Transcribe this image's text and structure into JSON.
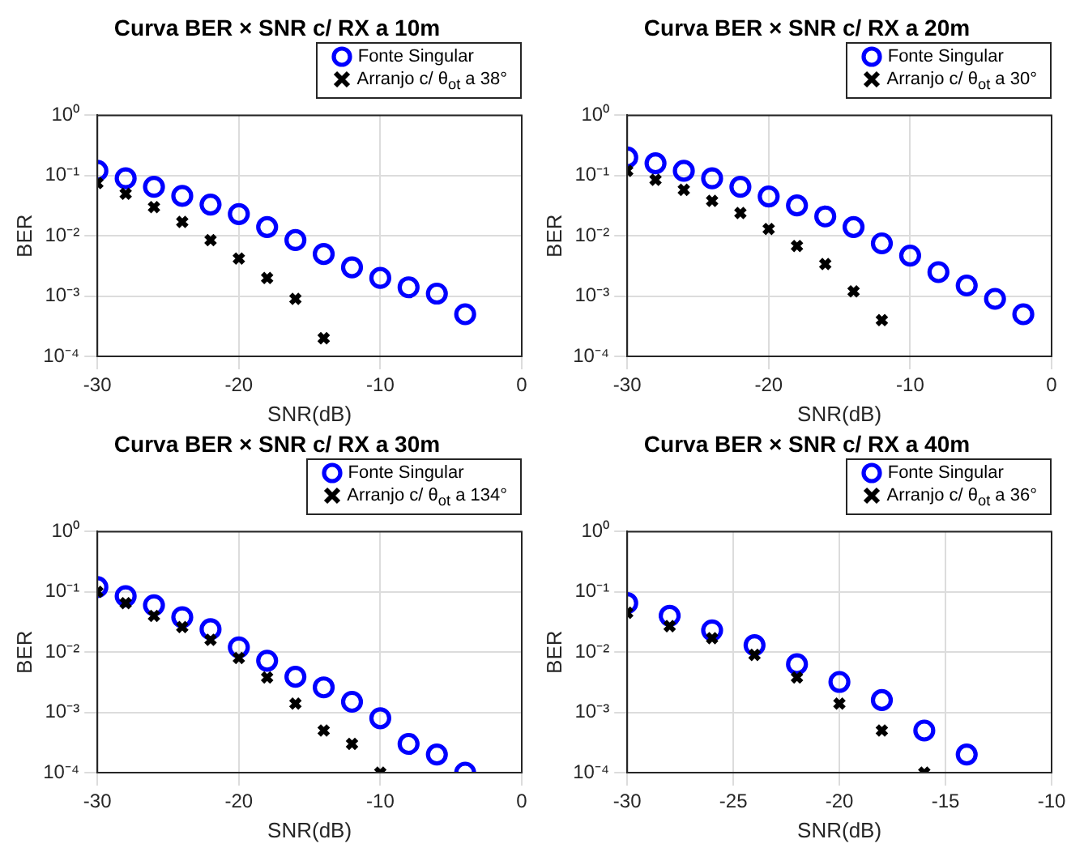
{
  "chart_data": [
    {
      "type": "scatter",
      "title": "Curva BER × SNR c/ RX a 10m",
      "xlabel": "SNR(dB)",
      "ylabel": "BER",
      "log": "y",
      "grid": true,
      "legend": "top right",
      "xlim": [
        -30,
        0
      ],
      "xticks": [
        -30,
        -20,
        -10,
        0
      ],
      "ylim": [
        0.0001,
        1
      ],
      "yticks": [
        {
          "value": 0.0001,
          "label": "10⁻⁴"
        },
        {
          "value": 0.001,
          "label": "10⁻³"
        },
        {
          "value": 0.01,
          "label": "10⁻²"
        },
        {
          "value": 0.1,
          "label": "10⁻¹"
        },
        {
          "value": 1,
          "label": "10⁰"
        }
      ],
      "series": [
        {
          "name": "Fonte Singular",
          "color": "#0000ff",
          "marker": "circle",
          "x": [
            -30,
            -28,
            -26,
            -24,
            -22,
            -20,
            -18,
            -16,
            -14,
            -12,
            -10,
            -8,
            -6,
            -4
          ],
          "values": [
            0.12,
            0.09,
            0.065,
            0.046,
            0.033,
            0.023,
            0.014,
            0.0085,
            0.005,
            0.003,
            0.002,
            0.0014,
            0.0011,
            0.0005
          ]
        },
        {
          "name": "Arranjo c/ θ$_{ot}$ a 38°",
          "color": "#000000",
          "marker": "cross",
          "x": [
            -30,
            -28,
            -26,
            -24,
            -22,
            -20,
            -18,
            -16,
            -14
          ],
          "values": [
            0.075,
            0.05,
            0.03,
            0.017,
            0.0085,
            0.0042,
            0.002,
            0.0009,
            0.0002
          ]
        }
      ]
    },
    {
      "type": "scatter",
      "title": "Curva BER × SNR c/ RX a 20m",
      "xlabel": "SNR(dB)",
      "ylabel": "BER",
      "log": "y",
      "grid": true,
      "legend": "top right",
      "xlim": [
        -30,
        0
      ],
      "xticks": [
        -30,
        -20,
        -10,
        0
      ],
      "ylim": [
        0.0001,
        1
      ],
      "yticks": [
        {
          "value": 0.0001,
          "label": "10⁻⁴"
        },
        {
          "value": 0.001,
          "label": "10⁻³"
        },
        {
          "value": 0.01,
          "label": "10⁻²"
        },
        {
          "value": 0.1,
          "label": "10⁻¹"
        },
        {
          "value": 1,
          "label": "10⁰"
        }
      ],
      "series": [
        {
          "name": "Fonte Singular",
          "color": "#0000ff",
          "marker": "circle",
          "x": [
            -30,
            -28,
            -26,
            -24,
            -22,
            -20,
            -18,
            -16,
            -14,
            -12,
            -10,
            -8,
            -6,
            -4,
            -2
          ],
          "values": [
            0.2,
            0.16,
            0.12,
            0.09,
            0.065,
            0.045,
            0.032,
            0.021,
            0.014,
            0.0075,
            0.0047,
            0.0025,
            0.0015,
            0.0009,
            0.0005
          ]
        },
        {
          "name": "Arranjo c/ θ$_{ot}$ a 30°",
          "color": "#000000",
          "marker": "cross",
          "x": [
            -30,
            -28,
            -26,
            -24,
            -22,
            -20,
            -18,
            -16,
            -14,
            -12
          ],
          "values": [
            0.12,
            0.085,
            0.058,
            0.038,
            0.024,
            0.013,
            0.0068,
            0.0034,
            0.0012,
            0.0004
          ]
        }
      ]
    },
    {
      "type": "scatter",
      "title": "Curva BER × SNR c/ RX a 30m",
      "xlabel": "SNR(dB)",
      "ylabel": "BER",
      "log": "y",
      "grid": true,
      "legend": "top right",
      "xlim": [
        -30,
        0
      ],
      "xticks": [
        -30,
        -20,
        -10,
        0
      ],
      "ylim": [
        0.0001,
        1
      ],
      "yticks": [
        {
          "value": 0.0001,
          "label": "10⁻⁴"
        },
        {
          "value": 0.001,
          "label": "10⁻³"
        },
        {
          "value": 0.01,
          "label": "10⁻²"
        },
        {
          "value": 0.1,
          "label": "10⁻¹"
        },
        {
          "value": 1,
          "label": "10⁰"
        }
      ],
      "series": [
        {
          "name": "Fonte Singular",
          "color": "#0000ff",
          "marker": "circle",
          "x": [
            -30,
            -28,
            -26,
            -24,
            -22,
            -20,
            -18,
            -16,
            -14,
            -12,
            -10,
            -8,
            -6,
            -4
          ],
          "values": [
            0.12,
            0.085,
            0.06,
            0.038,
            0.024,
            0.012,
            0.0072,
            0.0039,
            0.0026,
            0.0015,
            0.0008,
            0.0003,
            0.0002,
            0.0001
          ]
        },
        {
          "name": "Arranjo c/ θ$_{ot}$ a 134°",
          "color": "#000000",
          "marker": "cross",
          "x": [
            -30,
            -28,
            -26,
            -24,
            -22,
            -20,
            -18,
            -16,
            -14,
            -12,
            -10
          ],
          "values": [
            0.1,
            0.065,
            0.04,
            0.026,
            0.016,
            0.008,
            0.0038,
            0.0014,
            0.0005,
            0.0003,
            0.0001
          ]
        }
      ]
    },
    {
      "type": "scatter",
      "title": "Curva BER × SNR c/ RX a 40m",
      "xlabel": "SNR(dB)",
      "ylabel": "BER",
      "log": "y",
      "grid": true,
      "legend": "top right",
      "xlim": [
        -30,
        -10
      ],
      "xticks": [
        -30,
        -25,
        -20,
        -15,
        -10
      ],
      "ylim": [
        0.0001,
        1
      ],
      "yticks": [
        {
          "value": 0.0001,
          "label": "10⁻⁴"
        },
        {
          "value": 0.001,
          "label": "10⁻³"
        },
        {
          "value": 0.01,
          "label": "10⁻²"
        },
        {
          "value": 0.1,
          "label": "10⁻¹"
        },
        {
          "value": 1,
          "label": "10⁰"
        }
      ],
      "series": [
        {
          "name": "Fonte Singular",
          "color": "#0000ff",
          "marker": "circle",
          "x": [
            -30,
            -28,
            -26,
            -24,
            -22,
            -20,
            -18,
            -16,
            -14
          ],
          "values": [
            0.065,
            0.04,
            0.023,
            0.013,
            0.0063,
            0.0032,
            0.0016,
            0.0005,
            0.0002
          ]
        },
        {
          "name": "Arranjo c/ θ$_{ot}$ a 36°",
          "color": "#000000",
          "marker": "cross",
          "x": [
            -30,
            -28,
            -26,
            -24,
            -22,
            -20,
            -18,
            -16
          ],
          "values": [
            0.045,
            0.027,
            0.017,
            0.009,
            0.0038,
            0.0014,
            0.0005,
            0.0001
          ]
        }
      ]
    }
  ]
}
